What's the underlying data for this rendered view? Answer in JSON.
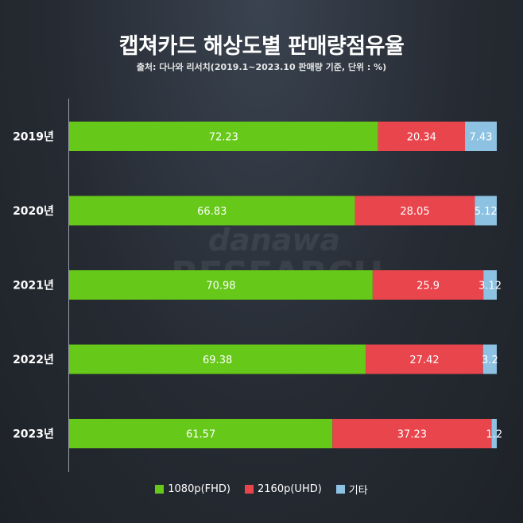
{
  "title": "캡쳐카드 해상도별 판매량점유율",
  "subtitle": "출처: 다나와 리서치(2019.1~2023.10 판매량 기준, 단위 : %)",
  "watermark": {
    "line1": "danawa",
    "line2": "RESEARCH"
  },
  "colors": {
    "fhd": "#66c818",
    "uhd": "#e8454c",
    "other": "#8ec2e2"
  },
  "chart_data": {
    "type": "bar",
    "orientation": "horizontal",
    "stacked": true,
    "title": "캡쳐카드 해상도별 판매량점유율",
    "categories": [
      "2019년",
      "2020년",
      "2021년",
      "2022년",
      "2023년"
    ],
    "series": [
      {
        "name": "1080p(FHD)",
        "color": "#66c818",
        "values": [
          72.23,
          66.83,
          70.98,
          69.38,
          61.57
        ]
      },
      {
        "name": "2160p(UHD)",
        "color": "#e8454c",
        "values": [
          20.34,
          28.05,
          25.9,
          27.42,
          37.23
        ]
      },
      {
        "name": "기타",
        "color": "#8ec2e2",
        "values": [
          7.43,
          5.12,
          3.12,
          3.2,
          1.2
        ]
      }
    ],
    "value_labels": [
      [
        "72.23",
        "20.34",
        "7.43"
      ],
      [
        "66.83",
        "28.05",
        "5.12"
      ],
      [
        "70.98",
        "25.9",
        "3.12"
      ],
      [
        "69.38",
        "27.42",
        "3.2"
      ],
      [
        "61.57",
        "37.23",
        "1.2"
      ]
    ],
    "xlim": [
      0,
      100
    ],
    "legend": "bottom",
    "grid": false
  },
  "legend": [
    {
      "label": "1080p(FHD)",
      "color": "#66c818"
    },
    {
      "label": "2160p(UHD)",
      "color": "#e8454c"
    },
    {
      "label": "기타",
      "color": "#8ec2e2"
    }
  ]
}
